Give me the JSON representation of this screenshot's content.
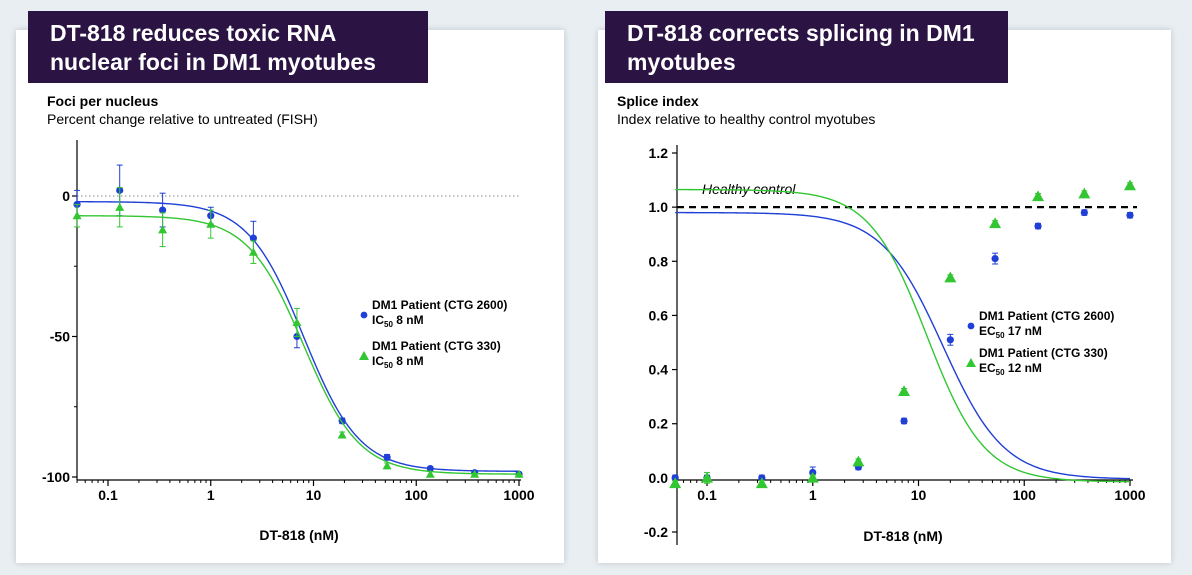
{
  "colors": {
    "blue": "#1f3fd6",
    "green": "#33c633",
    "banner": "#2b1444"
  },
  "left_panel": {
    "banner_line1": "DT-818 reduces toxic RNA",
    "banner_line2": "nuclear foci in DM1 myotubes",
    "title": "Foci per nucleus",
    "subtitle": "Percent change relative to untreated (FISH)"
  },
  "right_panel": {
    "banner_line1": "DT-818 corrects splicing in DM1",
    "banner_line2": "myotubes",
    "title": "Splice index",
    "subtitle": "Index relative to healthy control myotubes"
  },
  "chart_data": [
    {
      "type": "scatter",
      "xscale": "log",
      "xlabel": "DT-818 (nM)",
      "ylabel": "",
      "xlim": [
        0.05,
        1000
      ],
      "ylim": [
        -100,
        20
      ],
      "x_ticks": [
        0.1,
        1,
        10,
        100,
        1000
      ],
      "x_tick_labels": [
        "0.1",
        "1",
        "10",
        "100",
        "1000"
      ],
      "y_ticks": [
        0,
        -50,
        -100
      ],
      "y_tick_labels": [
        "0",
        "-50",
        "-100"
      ],
      "reference_line": {
        "y": 0,
        "style": "dotted"
      },
      "series": [
        {
          "name": "DM1 Patient (CTG 2600)",
          "legend_line1": "DM1 Patient (CTG 2600)",
          "legend_prefix": "IC",
          "legend_sub": "50",
          "legend_value": " 8 nM",
          "color": "#1f3fd6",
          "marker": "circle",
          "x": [
            0.05,
            0.13,
            0.34,
            1.0,
            2.6,
            6.9,
            19,
            52,
            137,
            370,
            1000
          ],
          "y": [
            -3,
            2,
            -5,
            -7,
            -15,
            -50,
            -80,
            -93,
            -97,
            -98.5,
            -99
          ],
          "err": [
            5,
            9,
            6,
            3,
            6,
            4,
            1,
            1,
            0.5,
            0.5,
            0.5
          ],
          "fit": {
            "top": -2,
            "bottom": -98,
            "ic50": 8,
            "hill": 1.6
          }
        },
        {
          "name": "DM1 Patient (CTG 330)",
          "legend_line1": "DM1 Patient (CTG 330)",
          "legend_prefix": "IC",
          "legend_sub": "50",
          "legend_value": " 8 nM",
          "color": "#33c633",
          "marker": "triangle",
          "x": [
            0.05,
            0.13,
            0.34,
            1.0,
            2.6,
            6.9,
            19,
            52,
            137,
            370,
            1000
          ],
          "y": [
            -7,
            -4,
            -12,
            -10,
            -20,
            -45,
            -85,
            -96,
            -99,
            -99,
            -99
          ],
          "err": [
            4,
            7,
            6,
            5,
            4,
            5,
            1,
            1,
            0.5,
            0.5,
            0.5
          ],
          "fit": {
            "top": -7,
            "bottom": -99,
            "ic50": 8,
            "hill": 1.6
          }
        }
      ]
    },
    {
      "type": "scatter",
      "xscale": "log",
      "xlabel": "DT-818 (nM)",
      "ylabel": "",
      "xlim": [
        0.05,
        1000
      ],
      "ylim": [
        -0.2,
        1.2
      ],
      "x_ticks": [
        0.1,
        1,
        10,
        100,
        1000
      ],
      "x_tick_labels": [
        "0.1",
        "1",
        "10",
        "100",
        "1000"
      ],
      "y_ticks": [
        1.2,
        1.0,
        0.8,
        0.6,
        0.4,
        0.2,
        0.0,
        -0.2
      ],
      "y_tick_labels": [
        "1.2",
        "1.0",
        "0.8",
        "0.6",
        "0.4",
        "0.2",
        "0.0",
        "-0.2"
      ],
      "reference_line": {
        "y": 1.0,
        "style": "dashed",
        "label": "Healthy control"
      },
      "series": [
        {
          "name": "DM1 Patient (CTG 2600)",
          "legend_line1": "DM1 Patient (CTG 2600)",
          "legend_prefix": "EC",
          "legend_sub": "50",
          "legend_value": " 17 nM",
          "color": "#1f3fd6",
          "marker": "circle",
          "x": [
            0.05,
            0.1,
            0.33,
            1.0,
            2.7,
            7.3,
            20,
            53,
            135,
            370,
            1000
          ],
          "y": [
            0.0,
            0.0,
            0.0,
            0.02,
            0.04,
            0.21,
            0.51,
            0.81,
            0.93,
            0.98,
            0.97
          ],
          "err": [
            0.01,
            0.01,
            0.01,
            0.02,
            0.01,
            0.01,
            0.02,
            0.02,
            0.01,
            0.01,
            0.01
          ],
          "fit": {
            "top": 0.98,
            "bottom": -0.005,
            "ic50": 17,
            "hill": 1.5
          }
        },
        {
          "name": "DM1 Patient (CTG 330)",
          "legend_line1": "DM1 Patient (CTG 330)",
          "legend_prefix": "EC",
          "legend_sub": "50",
          "legend_value": " 12 nM",
          "color": "#33c633",
          "marker": "triangle",
          "x": [
            0.05,
            0.1,
            0.33,
            1.0,
            2.7,
            7.3,
            20,
            53,
            135,
            370,
            1000
          ],
          "y": [
            -0.02,
            0.0,
            -0.02,
            0.0,
            0.06,
            0.32,
            0.74,
            0.94,
            1.04,
            1.05,
            1.08
          ],
          "err": [
            0.01,
            0.02,
            0.01,
            0.01,
            0.01,
            0.01,
            0.01,
            0.01,
            0.01,
            0.01,
            0.01
          ],
          "fit": {
            "top": 1.065,
            "bottom": -0.015,
            "ic50": 12,
            "hill": 1.6
          }
        }
      ]
    }
  ]
}
